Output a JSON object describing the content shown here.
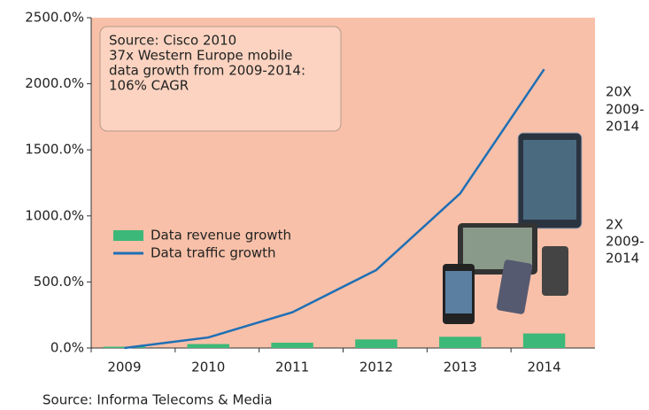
{
  "chart_data": {
    "type": "combo",
    "categories": [
      "2009",
      "2010",
      "2011",
      "2012",
      "2013",
      "2014"
    ],
    "series": [
      {
        "name": "Data revenue growth",
        "type": "bar",
        "color": "#3cb878",
        "values": [
          10,
          30,
          40,
          65,
          85,
          110
        ]
      },
      {
        "name": "Data traffic growth",
        "type": "line",
        "color": "#1f6fb5",
        "values": [
          0,
          80,
          270,
          590,
          1170,
          2110
        ]
      }
    ],
    "ylim": [
      0,
      2500
    ],
    "yticks": [
      {
        "value": 0,
        "label": "0.0%"
      },
      {
        "value": 500,
        "label": "500.0%"
      },
      {
        "value": 1000,
        "label": "1000.0%"
      },
      {
        "value": 1500,
        "label": "1500.0%"
      },
      {
        "value": 2000,
        "label": "2000.0%"
      },
      {
        "value": 2500,
        "label": "2500.0%"
      }
    ],
    "annotation": [
      "Source: Cisco 2010",
      "37x Western Europe mobile",
      "data growth from 2009-2014:",
      "106% CAGR"
    ],
    "traffic_note": [
      "20X",
      "2009-",
      "2014"
    ],
    "revenue_note": [
      "2X",
      "2009-",
      "2014"
    ],
    "source": "Source: Informa Telecoms & Media",
    "background": "#f8c0a8"
  }
}
